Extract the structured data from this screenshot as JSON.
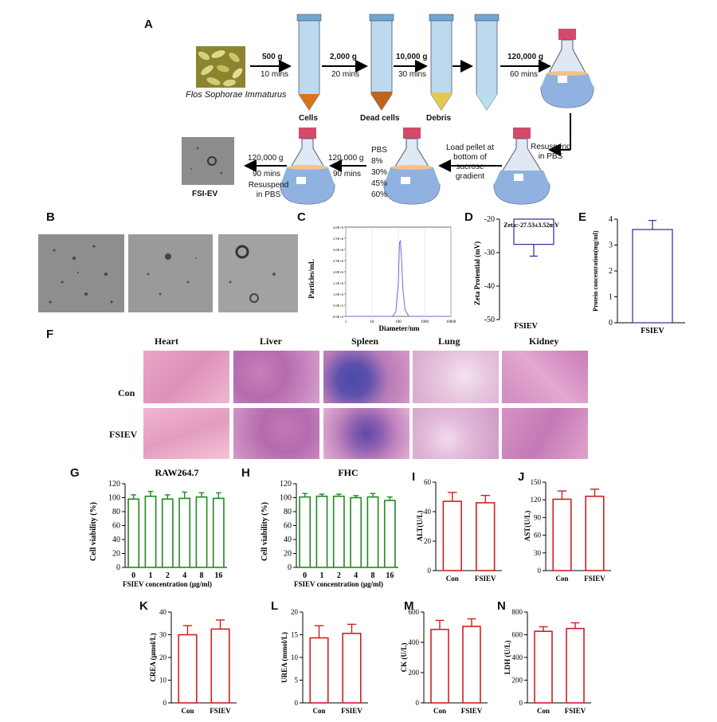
{
  "labels": {
    "A": "A",
    "B": "B",
    "C": "C",
    "D": "D",
    "E": "E",
    "F": "F",
    "G": "G",
    "H": "H",
    "I": "I",
    "J": "J",
    "K": "K",
    "L": "L",
    "M": "M",
    "N": "N"
  },
  "panelA": {
    "source_name": "Flos Sophorae Immaturus",
    "steps": [
      {
        "g": "500 g",
        "time": "10 mins"
      },
      {
        "g": "2,000 g",
        "time": "20 mins"
      },
      {
        "g": "10,000 g",
        "time": "30 mins"
      },
      {
        "g": "120,000 g",
        "time": "60 mins"
      }
    ],
    "pellets": [
      "Cells",
      "Dead cells",
      "Debris"
    ],
    "resuspend": "Resuspend in PBS",
    "load": "Load pellet at bottom of sucrose gradient",
    "gradient": [
      "PBS",
      "8%",
      "30%",
      "45%",
      "60%"
    ],
    "step5": {
      "g": "120,000 g",
      "time": "90 mins"
    },
    "step6": {
      "g": "120,000 g",
      "time": "90 mins",
      "extra": "Resuspend in PBS"
    },
    "product": "FSI-EV"
  },
  "panelC": {
    "ylabel": "Particles/mL",
    "xlabel": "Diameter/nm",
    "yticks": [
      "4.0E+6",
      "3.5E+6",
      "3.0E+6",
      "2.5E+6",
      "2.0E+6",
      "1.5E+6",
      "1.0E+6",
      "5.0E+5",
      "0.0E+0"
    ],
    "xticks": [
      "1",
      "10",
      "100",
      "1000",
      "10000"
    ]
  },
  "panelD": {
    "annotation": "Zeta:-27.53±3.52mV",
    "ylabel": "Zeta Protential (mV)",
    "category": "FSIEV",
    "yticks": [
      "-20",
      "-30",
      "-40",
      "-50"
    ]
  },
  "panelE": {
    "ylabel": "Protein concentration(mg/ml)",
    "category": "FSIEV",
    "yticks": [
      "4",
      "3",
      "2",
      "1",
      "0"
    ]
  },
  "panelF": {
    "columns": [
      "Heart",
      "Liver",
      "Spleen",
      "Lung",
      "Kidney"
    ],
    "rows": [
      "Con",
      "FSIEV"
    ]
  },
  "panelG": {
    "title": "RAW264.7",
    "ylabel": "Cell viability (%)",
    "xlabel": "FSIEV concentration (μg/ml)"
  },
  "panelH": {
    "title": "FHC",
    "ylabel": "Cell viability (%)",
    "xlabel": "FSIEV concentration (μg/ml)"
  },
  "panelI": {
    "ylabel": "ALT(U/L)"
  },
  "panelJ": {
    "ylabel": "AST(U/L)"
  },
  "panelK": {
    "ylabel": "CREA (μmol/L)"
  },
  "panelL": {
    "ylabel": "UREA (mmol/L)"
  },
  "panelM": {
    "ylabel": "CK (U/L)"
  },
  "panelN": {
    "ylabel": "LDH (U/L)"
  },
  "colors": {
    "blue_bar": "#2b2b9c",
    "green_bar": "#1f8a1f",
    "red_bar": "#d21f1f",
    "tube_liquid": "#a9cde6",
    "flask_liquid": "#8fb2e0"
  },
  "chart_data": [
    {
      "id": "C",
      "type": "line",
      "xscale": "log",
      "x": [
        1,
        10,
        60,
        80,
        100,
        110,
        120,
        130,
        150,
        180,
        250,
        1000,
        10000
      ],
      "y": [
        0,
        0,
        0,
        200000,
        1500000,
        3300000,
        3400000,
        2700000,
        1200000,
        300000,
        0,
        0,
        0
      ],
      "xlim": [
        1,
        10000
      ],
      "ylim": [
        0,
        4000000
      ],
      "xlabel": "Diameter/nm",
      "ylabel": "Particles/mL"
    },
    {
      "id": "D",
      "type": "bar",
      "categories": [
        "FSIEV"
      ],
      "values": [
        -27.53
      ],
      "errors": [
        3.52
      ],
      "ylim": [
        -50,
        -20
      ],
      "ylabel": "Zeta Protential (mV)"
    },
    {
      "id": "E",
      "type": "bar",
      "categories": [
        "FSIEV"
      ],
      "values": [
        3.6
      ],
      "errors": [
        0.35
      ],
      "ylim": [
        0,
        4
      ],
      "ylabel": "Protein concentration(mg/ml)"
    },
    {
      "id": "G",
      "type": "bar",
      "title": "RAW264.7",
      "categories": [
        "0",
        "1",
        "2",
        "4",
        "8",
        "16"
      ],
      "values": [
        98,
        102,
        98,
        99,
        101,
        99
      ],
      "errors": [
        6,
        7,
        6,
        9,
        6,
        8
      ],
      "ylim": [
        0,
        120
      ],
      "ylabel": "Cell viability (%)",
      "xlabel": "FSIEV concentration (μg/ml)"
    },
    {
      "id": "H",
      "type": "bar",
      "title": "FHC",
      "categories": [
        "0",
        "1",
        "2",
        "4",
        "8",
        "16"
      ],
      "values": [
        101,
        102,
        102,
        100,
        101,
        96
      ],
      "errors": [
        5,
        3,
        3,
        3,
        5,
        5
      ],
      "ylim": [
        0,
        120
      ],
      "ylabel": "Cell viability (%)",
      "xlabel": "FSIEV concentration (μg/ml)"
    },
    {
      "id": "I",
      "type": "bar",
      "categories": [
        "Con",
        "FSIEV"
      ],
      "values": [
        47,
        46
      ],
      "errors": [
        6,
        5
      ],
      "ylim": [
        0,
        60
      ],
      "ylabel": "ALT(U/L)"
    },
    {
      "id": "J",
      "type": "bar",
      "categories": [
        "Con",
        "FSIEV"
      ],
      "values": [
        121,
        126
      ],
      "errors": [
        14,
        12
      ],
      "ylim": [
        0,
        150
      ],
      "ylabel": "AST(U/L)"
    },
    {
      "id": "K",
      "type": "bar",
      "categories": [
        "Con",
        "FSIEV"
      ],
      "values": [
        30,
        32.5
      ],
      "errors": [
        4,
        4
      ],
      "ylim": [
        0,
        40
      ],
      "ylabel": "CREA (μmol/L)"
    },
    {
      "id": "L",
      "type": "bar",
      "categories": [
        "Con",
        "FSIEV"
      ],
      "values": [
        14.3,
        15.3
      ],
      "errors": [
        2.7,
        2
      ],
      "ylim": [
        0,
        20
      ],
      "ylabel": "UREA (mmol/L)"
    },
    {
      "id": "M",
      "type": "bar",
      "categories": [
        "Con",
        "FSIEV"
      ],
      "values": [
        485,
        505
      ],
      "errors": [
        60,
        50
      ],
      "ylim": [
        0,
        600
      ],
      "ylabel": "CK (U/L)"
    },
    {
      "id": "N",
      "type": "bar",
      "categories": [
        "Con",
        "FSIEV"
      ],
      "values": [
        630,
        655
      ],
      "errors": [
        40,
        50
      ],
      "ylim": [
        0,
        800
      ],
      "ylabel": "LDH (U/L)"
    }
  ]
}
